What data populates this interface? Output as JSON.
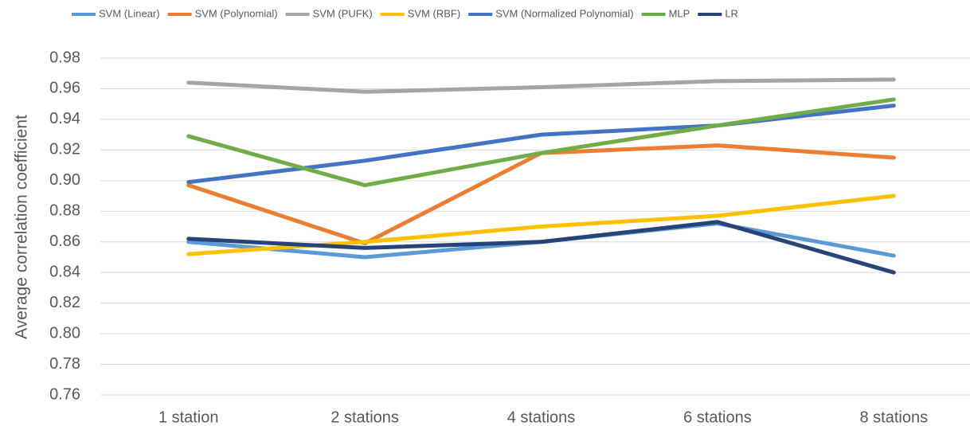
{
  "chart_data": {
    "type": "line",
    "y_label": "Average correlation coefficient",
    "categories": [
      "1 station",
      "2 stations",
      "4 stations",
      "6 stations",
      "8 stations"
    ],
    "series": [
      {
        "name": "SVM (Linear)",
        "color": "#5b9bd5",
        "values": [
          0.86,
          0.85,
          0.86,
          0.872,
          0.851
        ]
      },
      {
        "name": "SVM (Polynomial)",
        "color": "#ed7d31",
        "values": [
          0.897,
          0.859,
          0.918,
          0.923,
          0.915
        ]
      },
      {
        "name": "SVM (PUFK)",
        "color": "#a5a5a5",
        "values": [
          0.964,
          0.958,
          0.961,
          0.965,
          0.966
        ]
      },
      {
        "name": "SVM (RBF)",
        "color": "#ffc000",
        "values": [
          0.852,
          0.86,
          0.87,
          0.877,
          0.89
        ]
      },
      {
        "name": "SVM (Normalized Polynomial)",
        "color": "#4472c4",
        "values": [
          0.899,
          0.913,
          0.93,
          0.936,
          0.949
        ]
      },
      {
        "name": "MLP",
        "color": "#70ad47",
        "values": [
          0.929,
          0.897,
          0.918,
          0.936,
          0.953
        ]
      },
      {
        "name": "LR",
        "color": "#264478",
        "values": [
          0.862,
          0.856,
          0.86,
          0.873,
          0.84
        ]
      }
    ],
    "ylim": [
      0.76,
      0.98
    ],
    "yticks": [
      0.76,
      0.78,
      {
        "value": 0.8,
        "label": "0.80"
      },
      0.82,
      0.84,
      0.86,
      0.88,
      {
        "value": 0.9,
        "label": "0.90"
      },
      0.92,
      0.94,
      0.96,
      0.98
    ],
    "grid": true,
    "legend": "top"
  }
}
